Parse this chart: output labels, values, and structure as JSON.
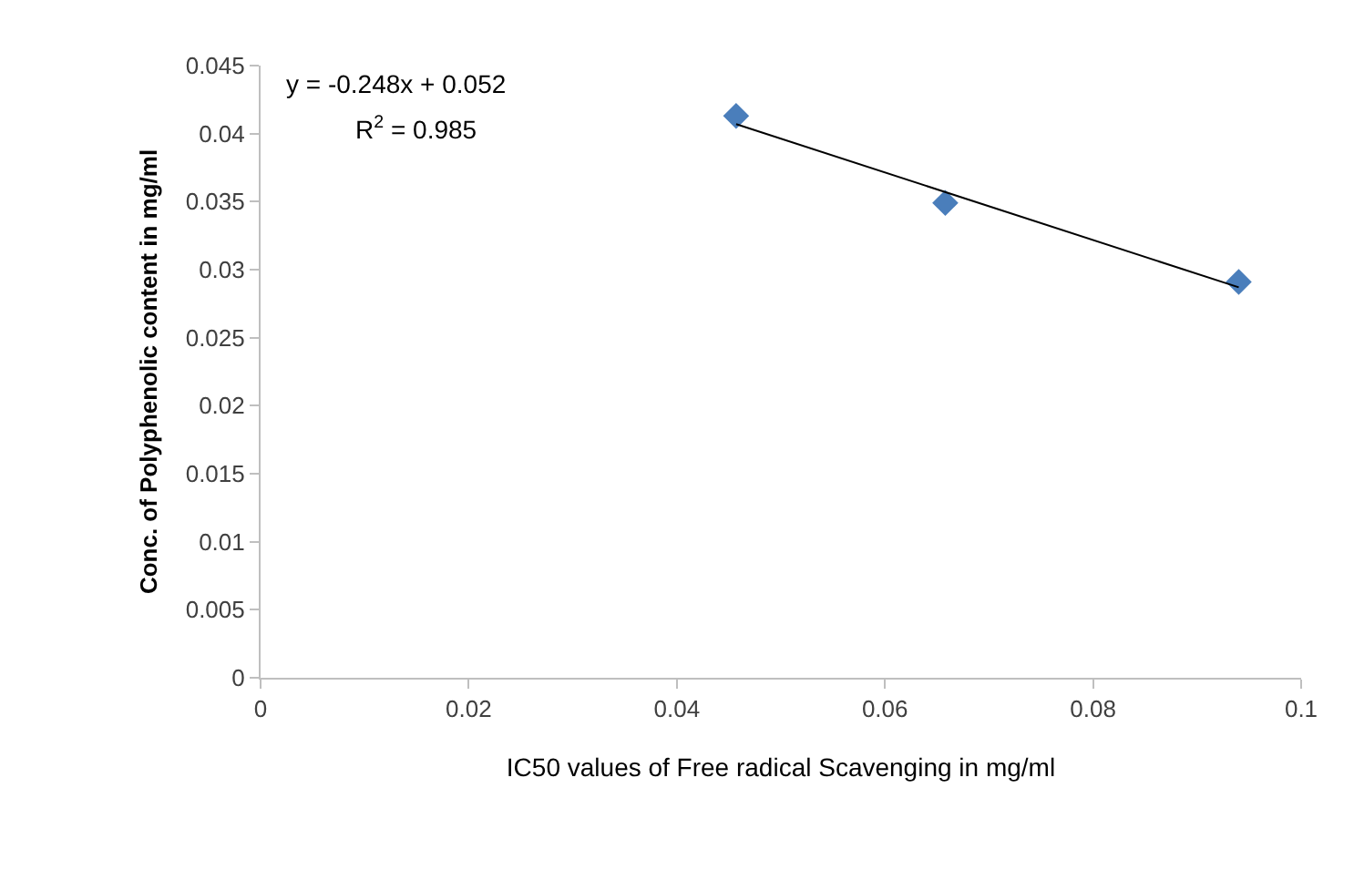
{
  "chart_data": {
    "type": "scatter",
    "xlabel": "IC50 values of Free radical Scavenging in mg/ml",
    "ylabel": "Conc. of Polyphenolic content in mg/ml",
    "x": [
      0.0457,
      0.0658,
      0.094
    ],
    "series": [
      {
        "color": "#4a7ebb",
        "marker": "diamond",
        "values": [
          0.0413,
          0.0349,
          0.0291
        ]
      },
      {
        "type": "line",
        "color": "#000000",
        "marker": "none",
        "line_style": "solid",
        "x": [
          0.0457,
          0.094
        ],
        "values": [
          0.0407,
          0.0287
        ]
      }
    ],
    "annotations": [
      "y = -0.248x + 0.052",
      "R$^{2}$ = 0.985"
    ],
    "xlim": [
      0,
      0.1
    ],
    "xticks": [
      0,
      0.02,
      0.04,
      0.06,
      0.08,
      0.1
    ],
    "ylim": [
      0,
      0.045
    ],
    "yticks": [
      0,
      0.005,
      0.01,
      0.015,
      0.02,
      0.025,
      0.03,
      0.035,
      0.04,
      0.045
    ],
    "legend": false
  }
}
